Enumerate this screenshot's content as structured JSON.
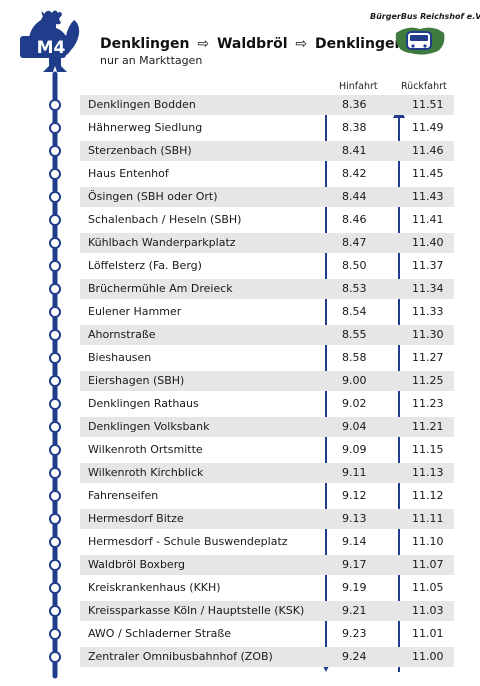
{
  "header": {
    "route_code": "M4",
    "title_from": "Denklingen",
    "title_via": "Waldbröl",
    "title_to": "Denklingen",
    "arrow": "⇨",
    "subtitle": "nur an Markttagen",
    "brand": "BürgerBus Reichshof e.V.",
    "brand_color": "#1f3d8a",
    "rooster_icon": "rooster-icon"
  },
  "columns": {
    "outbound": "Hinfahrt",
    "return": "Rückfahrt"
  },
  "stops": [
    {
      "name": "Denklingen Bodden",
      "hin": "8.36",
      "rueck": "11.51"
    },
    {
      "name": "Hähnerweg Siedlung",
      "hin": "8.38",
      "rueck": "11.49"
    },
    {
      "name": "Sterzenbach (SBH)",
      "hin": "8.41",
      "rueck": "11.46"
    },
    {
      "name": "Haus Entenhof",
      "hin": "8.42",
      "rueck": "11.45"
    },
    {
      "name": "Ösingen (SBH oder Ort)",
      "hin": "8.44",
      "rueck": "11.43"
    },
    {
      "name": "Schalenbach / Heseln (SBH)",
      "hin": "8.46",
      "rueck": "11.41"
    },
    {
      "name": "Kühlbach Wanderparkplatz",
      "hin": "8.47",
      "rueck": "11.40"
    },
    {
      "name": "Löffelsterz (Fa. Berg)",
      "hin": "8.50",
      "rueck": "11.37"
    },
    {
      "name": "Brüchermühle Am Dreieck",
      "hin": "8.53",
      "rueck": "11.34"
    },
    {
      "name": "Eulener Hammer",
      "hin": "8.54",
      "rueck": "11.33"
    },
    {
      "name": "Ahornstraße",
      "hin": "8.55",
      "rueck": "11.30"
    },
    {
      "name": "Bieshausen",
      "hin": "8.58",
      "rueck": "11.27"
    },
    {
      "name": "Eiershagen (SBH)",
      "hin": "9.00",
      "rueck": "11.25"
    },
    {
      "name": "Denklingen Rathaus",
      "hin": "9.02",
      "rueck": "11.23"
    },
    {
      "name": "Denklingen Volksbank",
      "hin": "9.04",
      "rueck": "11.21"
    },
    {
      "name": "Wilkenroth Ortsmitte",
      "hin": "9.09",
      "rueck": "11.15"
    },
    {
      "name": "Wilkenroth Kirchblick",
      "hin": "9.11",
      "rueck": "11.13"
    },
    {
      "name": "Fahrenseifen",
      "hin": "9.12",
      "rueck": "11.12"
    },
    {
      "name": "Hermesdorf Bitze",
      "hin": "9.13",
      "rueck": "11.11"
    },
    {
      "name": "Hermesdorf - Schule Buswendeplatz",
      "hin": "9.14",
      "rueck": "11.10"
    },
    {
      "name": "Waldbröl Boxberg",
      "hin": "9.17",
      "rueck": "11.07"
    },
    {
      "name": "Kreiskrankenhaus (KKH)",
      "hin": "9.19",
      "rueck": "11.05"
    },
    {
      "name": "Kreissparkasse Köln / Hauptstelle (KSK)",
      "hin": "9.21",
      "rueck": "11.03"
    },
    {
      "name": "AWO / Schladerner Straße",
      "hin": "9.23",
      "rueck": "11.01"
    },
    {
      "name": "Zentraler Omnibusbahnhof (ZOB)",
      "hin": "9.24",
      "rueck": "11.00"
    }
  ]
}
